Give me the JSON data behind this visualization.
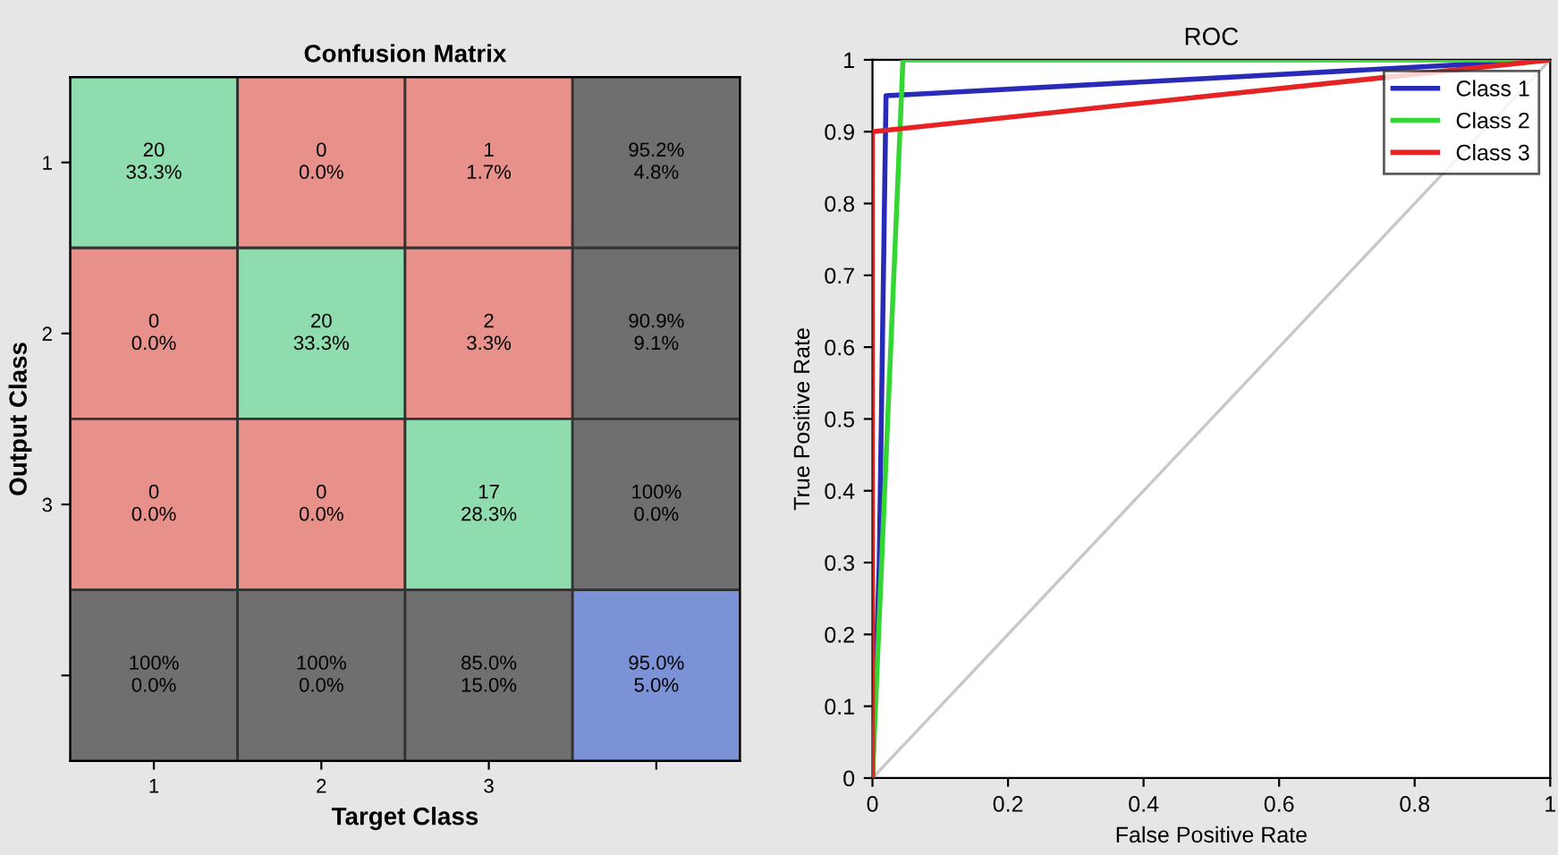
{
  "chart_data": [
    {
      "type": "heatmap",
      "title": "Confusion Matrix",
      "xlabel": "Target Class",
      "ylabel": "Output Class",
      "categories": [
        "1",
        "2",
        "3",
        null
      ],
      "y_categories": [
        "1",
        "2",
        "3",
        null
      ],
      "cells": [
        [
          20,
          0,
          1,
          95.2
        ],
        [
          0,
          20,
          2,
          90.9
        ],
        [
          0,
          0,
          17,
          100
        ],
        [
          100,
          100,
          85.0,
          95.0
        ]
      ],
      "cell_labels": [
        [
          "20",
          "0",
          "1",
          "95.2%"
        ],
        [
          "0",
          "20",
          "2",
          "90.9%"
        ],
        [
          "0",
          "0",
          "17",
          "100%"
        ],
        [
          "100%",
          "100%",
          "85.0%",
          "95.0%"
        ]
      ],
      "annotations": [
        "33.3%",
        "0.0%",
        "1.7%",
        "4.8%",
        "0.0%",
        "33.3%",
        "3.3%",
        "9.1%",
        "0.0%",
        "0.0%",
        "28.3%",
        "0.0%",
        "0.0%",
        "0.0%",
        "15.0%",
        "5.0%"
      ],
      "colors": [
        [
          "#8fdcae",
          "#e8918b",
          "#e8918b",
          "#6f6f6f"
        ],
        [
          "#e8918b",
          "#8fdcae",
          "#e8918b",
          "#6f6f6f"
        ],
        [
          "#e8918b",
          "#e8918b",
          "#8fdcae",
          "#6f6f6f"
        ],
        [
          "#6f6f6f",
          "#6f6f6f",
          "#6f6f6f",
          "#7b93d6"
        ]
      ]
    },
    {
      "type": "line",
      "title": "ROC",
      "xlabel": "False Positive Rate",
      "ylabel": "True Positive Rate",
      "xlim": [
        0,
        1
      ],
      "ylim": [
        0,
        1
      ],
      "xticks": [
        0,
        0.2,
        0.4,
        0.6,
        0.8,
        1
      ],
      "yticks": [
        0,
        0.1,
        0.2,
        0.3,
        0.4,
        0.5,
        0.6,
        0.7,
        0.8,
        0.9,
        1
      ],
      "legend": "top right",
      "grid": false,
      "series": [
        {
          "name": "Class 1",
          "color": "#2a2ab8",
          "x": [
            0,
            0.01,
            0.02,
            1
          ],
          "values": [
            0,
            0.3,
            0.95,
            1
          ]
        },
        {
          "name": "Class 2",
          "color": "#33d633",
          "x": [
            0,
            0.045,
            1
          ],
          "values": [
            0,
            1,
            1
          ]
        },
        {
          "name": "Class 3",
          "color": "#e62222",
          "x": [
            0,
            0,
            1
          ],
          "values": [
            0,
            0.9,
            1
          ]
        },
        {
          "color": "#c8c8c8",
          "x": [
            0,
            1
          ],
          "values": [
            0,
            1
          ]
        }
      ]
    }
  ]
}
